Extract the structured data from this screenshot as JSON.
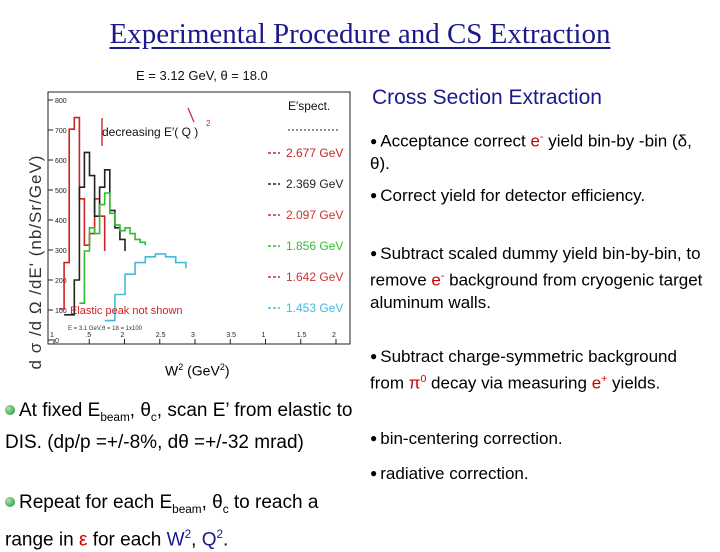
{
  "title": "Experimental Procedure and CS Extraction",
  "chart_data": {
    "type": "line",
    "header_text": "E = 3.12 GeV,  θ = 18.0",
    "ylabel": "d σ /d Ω /dE' (nb/Sr/GeV)",
    "xlabel_main": "W",
    "xlabel_sup": "2",
    "xlabel_unit": " (GeV",
    "xlabel_unit_sup": "2",
    "xlabel_close": ")",
    "y_ticks": [
      "800",
      "700",
      "600",
      "500",
      "400",
      "300",
      "200",
      "100",
      "0"
    ],
    "x_ticks": [
      "1",
      ".5",
      "2",
      "2.5",
      "3",
      "3.5",
      "1",
      "1.5",
      "2"
    ],
    "annotation_decreasing": "decreasing E′( Q  )",
    "annotation_q2": "2",
    "annotation_elastic": "Elastic peak not shown",
    "legend_title": "E′spect.",
    "legend_entries": [
      {
        "label": "2.677 GeV",
        "color": "#cc2222"
      },
      {
        "label": "2.369 GeV",
        "color": "#222222"
      },
      {
        "label": "2.097 GeV",
        "color": "#cc3333"
      },
      {
        "label": "1.856 GeV",
        "color": "#33bb33"
      },
      {
        "label": "1.642 GeV",
        "color": "#cc3333"
      },
      {
        "label": "1.453 GeV",
        "color": "#44bbdd"
      }
    ],
    "footer_text": "E = 3.1 GeV,θ = 18  = 1x100",
    "series": [
      {
        "color": "#cc2222",
        "x": [
          0.9,
          1.0,
          1.1,
          1.2,
          1.3,
          1.4,
          1.5,
          1.6,
          1.7,
          1.8
        ],
        "y": [
          100,
          260,
          720,
          760,
          480,
          320,
          360,
          480,
          420,
          300
        ]
      },
      {
        "color": "#222222",
        "x": [
          1.0,
          1.2,
          1.3,
          1.4,
          1.5,
          1.6,
          1.7,
          1.8,
          1.9,
          2.0,
          2.1,
          2.2
        ],
        "y": [
          80,
          200,
          520,
          640,
          560,
          420,
          520,
          580,
          440,
          380,
          340,
          300
        ]
      },
      {
        "color": "#33bb33",
        "x": [
          1.3,
          1.4,
          1.5,
          1.6,
          1.7,
          1.8,
          1.9,
          2.0,
          2.1,
          2.2,
          2.3,
          2.4,
          2.5,
          2.6
        ],
        "y": [
          120,
          300,
          380,
          360,
          460,
          500,
          430,
          390,
          370,
          380,
          360,
          340,
          330,
          320
        ]
      },
      {
        "color": "#44bbdd",
        "x": [
          1.8,
          2.0,
          2.2,
          2.4,
          2.6,
          2.8,
          3.0,
          3.2,
          3.4
        ],
        "y": [
          60,
          150,
          220,
          260,
          280,
          290,
          280,
          260,
          240
        ]
      }
    ]
  },
  "right": {
    "heading": "Cross Section Extraction",
    "b1_a": "Acceptance correct ",
    "b1_e": "e",
    "b1_sup": "-",
    "b1_b": " yield bin-by -bin (δ, θ).",
    "b2": "Correct yield for detector efficiency.",
    "b3_a": "Subtract scaled dummy yield bin-by-bin, to remove ",
    "b3_e": "e",
    "b3_sup": "-",
    "b3_b": " background from cryogenic target aluminum walls.",
    "b4_a": "Subtract charge-symmetric background from ",
    "b4_pi": "π",
    "b4_sup": "0",
    "b4_b": " decay via measuring ",
    "b4_e": "e",
    "b4_sup2": "+",
    "b4_c": "  yields.",
    "b5": "bin-centering correction.",
    "b6": "radiative correction."
  },
  "left": {
    "p1_a": "At fixed E",
    "p1_sub1": "beam",
    "p1_b": ", θ",
    "p1_sub2": "c",
    "p1_c": ", scan E’ from elastic to DIS. (dp/p =+/-8%, dθ =+/-32 mrad)",
    "p2_a": "Repeat for each E",
    "p2_sub1": "beam",
    "p2_b": ", θ",
    "p2_sub2": "c",
    "p2_c": " to reach a range in ",
    "p2_eps": "ε",
    "p2_d": " for each ",
    "p2_w": "W",
    "p2_wsup": "2",
    "p2_comma": ", ",
    "p2_q": "Q",
    "p2_qsup": "2",
    "p2_end": "."
  }
}
